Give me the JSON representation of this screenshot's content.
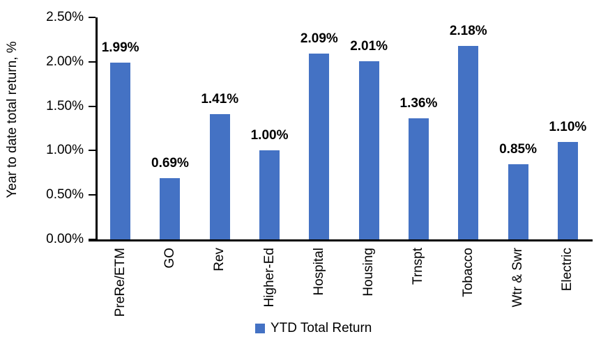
{
  "chart_data": {
    "type": "bar",
    "title": "",
    "xlabel": "",
    "ylabel": "Year to date total return, %",
    "categories": [
      "PreRe/ETM",
      "GO",
      "Rev",
      "Higher-Ed",
      "Hospital",
      "Housing",
      "Trnspt",
      "Tobacco",
      "Wtr & Swr",
      "Electric"
    ],
    "values": [
      1.99,
      0.69,
      1.41,
      1.0,
      2.09,
      2.01,
      1.36,
      2.18,
      0.85,
      1.1
    ],
    "data_labels": [
      "1.99%",
      "0.69%",
      "1.41%",
      "1.00%",
      "2.09%",
      "2.01%",
      "1.36%",
      "2.18%",
      "0.85%",
      "1.10%"
    ],
    "ylim": [
      0,
      2.5
    ],
    "y_axis": {
      "ticks": [
        {
          "value": 0.0,
          "label": "0.00%"
        },
        {
          "value": 0.5,
          "label": "0.50%"
        },
        {
          "value": 1.0,
          "label": "1.00%"
        },
        {
          "value": 1.5,
          "label": "1.50%"
        },
        {
          "value": 2.0,
          "label": "2.00%"
        },
        {
          "value": 2.5,
          "label": "2.50%"
        }
      ]
    },
    "grid": false,
    "bar_color": "#4472C4",
    "axis_color": "#000000",
    "label_color": "#000000",
    "legend": {
      "position": "bottom",
      "entries": [
        {
          "label": "YTD Total Return",
          "color": "#4472C4"
        }
      ]
    }
  }
}
